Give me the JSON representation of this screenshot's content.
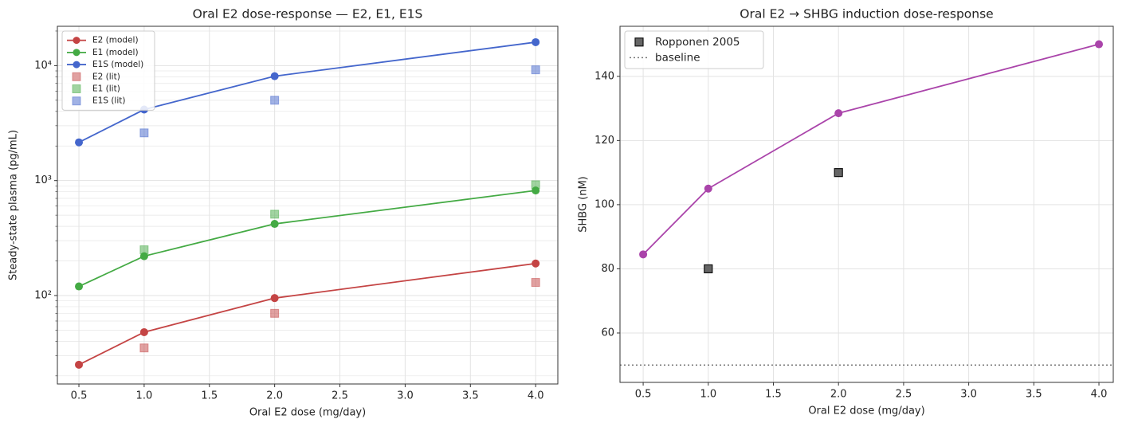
{
  "chart_data": [
    {
      "type": "line",
      "title": "Oral E2 dose-response — E2, E1, E1S",
      "xlabel": "Oral E2 dose (mg/day)",
      "ylabel": "Steady-state plasma (pg/mL)",
      "log_y": true,
      "grid": true,
      "legend": "upper left",
      "xlim": [
        0.335,
        4.17
      ],
      "ylim": [
        17,
        22000
      ],
      "xticks": [
        0.5,
        {
          "value": 1,
          "label": "1.0"
        },
        1.5,
        {
          "value": 2,
          "label": "2.0"
        },
        2.5,
        {
          "value": 3,
          "label": "3.0"
        },
        3.5,
        {
          "value": 4,
          "label": "4.0"
        }
      ],
      "yticks": [
        {
          "value": 100,
          "label": "10²"
        },
        {
          "value": 1000,
          "label": "10³"
        },
        {
          "value": 10000,
          "label": "10⁴"
        }
      ],
      "series": [
        {
          "name": "E2 (model)",
          "color": "#c44444",
          "style": "line",
          "x": [
            0.5,
            1,
            2,
            4
          ],
          "values": [
            25,
            48,
            95,
            190
          ]
        },
        {
          "name": "E1 (model)",
          "color": "#44aa44",
          "style": "line",
          "x": [
            0.5,
            1,
            2,
            4
          ],
          "values": [
            120,
            220,
            420,
            820
          ]
        },
        {
          "name": "E1S (model)",
          "color": "#4466cc",
          "style": "line",
          "x": [
            0.5,
            1,
            2,
            4
          ],
          "values": [
            2150,
            4150,
            8100,
            16000
          ]
        },
        {
          "name": "E2 (lit)",
          "color": "#c44444",
          "style": "scatter",
          "x": [
            1,
            2,
            4
          ],
          "values": [
            35,
            70,
            130
          ]
        },
        {
          "name": "E1 (lit)",
          "color": "#44aa44",
          "style": "scatter",
          "x": [
            1,
            2,
            4
          ],
          "values": [
            250,
            510,
            920
          ]
        },
        {
          "name": "E1S (lit)",
          "color": "#4466cc",
          "style": "scatter",
          "x": [
            1,
            2,
            4
          ],
          "values": [
            2600,
            5000,
            9200
          ]
        }
      ]
    },
    {
      "type": "line",
      "title": "Oral E2 → SHBG induction dose-response",
      "xlabel": "Oral E2 dose (mg/day)",
      "ylabel": "SHBG (nM)",
      "grid": true,
      "legend": "upper left",
      "xlim": [
        0.322,
        4.11
      ],
      "ylim": [
        44.6,
        155.6
      ],
      "xticks": [
        0.5,
        {
          "value": 1,
          "label": "1.0"
        },
        1.5,
        {
          "value": 2,
          "label": "2.0"
        },
        2.5,
        {
          "value": 3,
          "label": "3.0"
        },
        3.5,
        {
          "value": 4,
          "label": "4.0"
        }
      ],
      "yticks": [
        60,
        80,
        100,
        120,
        140
      ],
      "series": [
        {
          "color": "#aa44aa",
          "style": "line",
          "x": [
            0.5,
            1,
            2,
            4
          ],
          "values": [
            84.5,
            105,
            128.5,
            150
          ]
        },
        {
          "name": "Ropponen 2005",
          "color": "#555555",
          "style": "square",
          "x": [
            1,
            2
          ],
          "values": [
            80,
            110
          ]
        }
      ],
      "hlines": [
        {
          "name": "baseline",
          "value": 50,
          "color": "#777777"
        }
      ]
    }
  ]
}
